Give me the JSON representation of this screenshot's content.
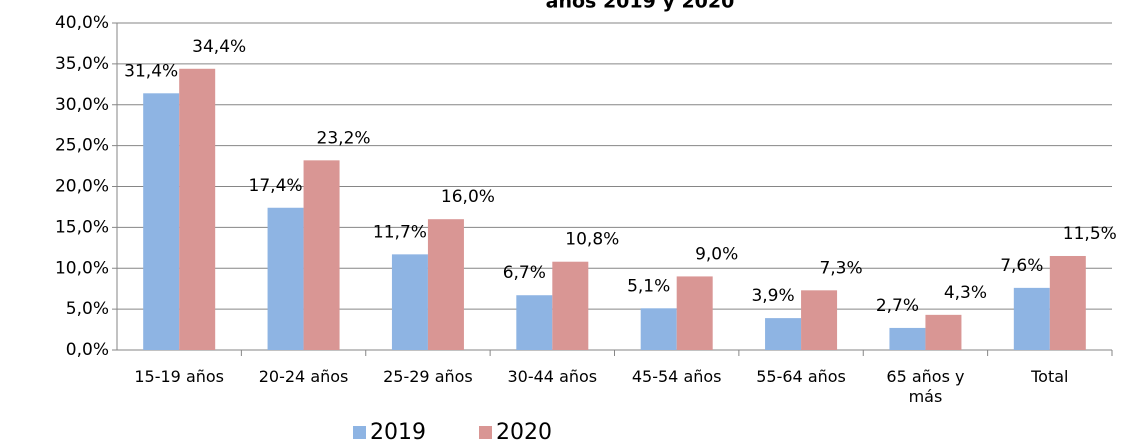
{
  "chart_data": {
    "type": "bar",
    "title": "años 2019 y 2020",
    "categories": [
      "15-19 años",
      "20-24 años",
      "25-29 años",
      "30-44 años",
      "45-54 años",
      "55-64 años",
      "65 años y\nmás",
      "Total"
    ],
    "series": [
      {
        "name": "2019",
        "color": "#8eb4e3",
        "values": [
          31.4,
          17.4,
          11.7,
          6.7,
          5.1,
          3.9,
          2.7,
          7.6
        ],
        "value_labels": [
          "31,4%",
          "17,4%",
          "11,7%",
          "6,7%",
          "5,1%",
          "3,9%",
          "2,7%",
          "7,6%"
        ]
      },
      {
        "name": "2020",
        "color": "#d99694",
        "values": [
          34.4,
          23.2,
          16.0,
          10.8,
          9.0,
          7.3,
          4.3,
          11.5
        ],
        "value_labels": [
          "34,4%",
          "23,2%",
          "16,0%",
          "10,8%",
          "9,0%",
          "7,3%",
          "4,3%",
          "11,5%"
        ]
      }
    ],
    "ylim": [
      0,
      40
    ],
    "yticks": [
      {
        "value": 0,
        "label": "0,0%"
      },
      {
        "value": 5,
        "label": "5,0%"
      },
      {
        "value": 10,
        "label": "10,0%"
      },
      {
        "value": 15,
        "label": "15,0%"
      },
      {
        "value": 20,
        "label": "20,0%"
      },
      {
        "value": 25,
        "label": "25,0%"
      },
      {
        "value": 30,
        "label": "30,0%"
      },
      {
        "value": 35,
        "label": "35,0%"
      },
      {
        "value": 40,
        "label": "40,0%"
      }
    ],
    "grid": true,
    "legend": "bottom"
  }
}
